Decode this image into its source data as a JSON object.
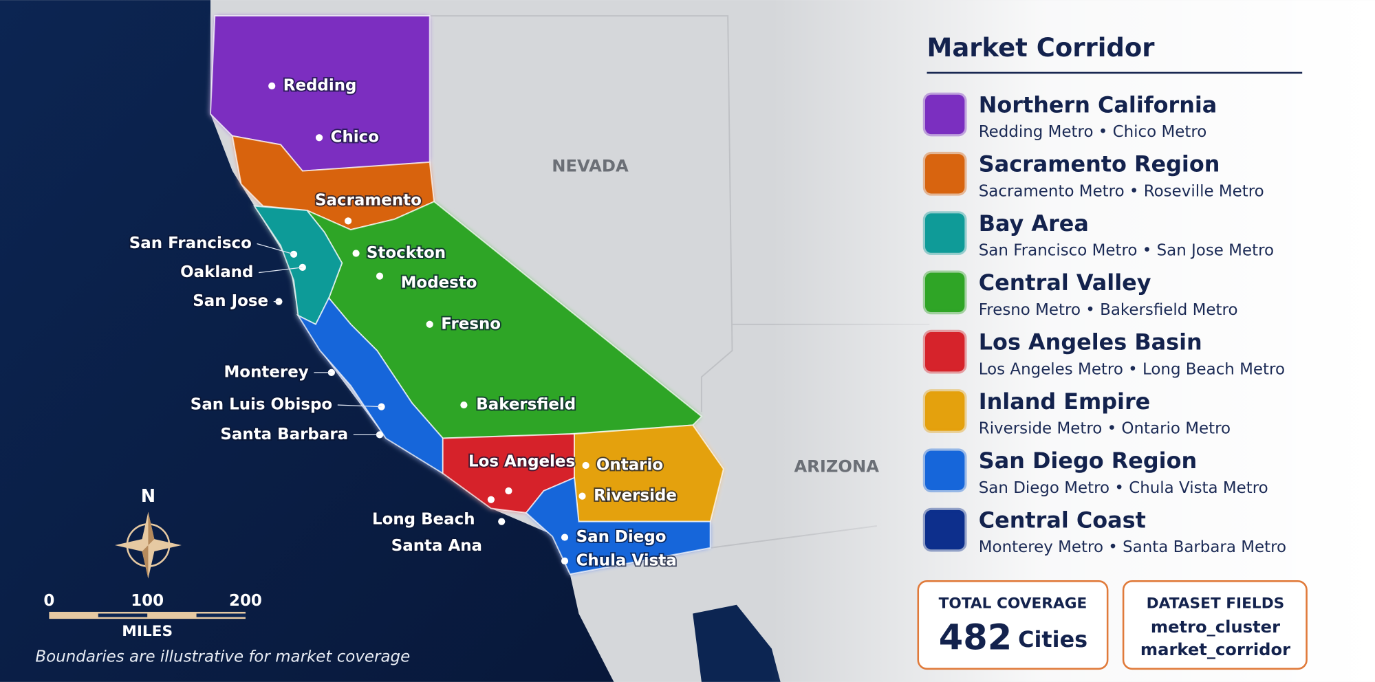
{
  "map": {
    "states": [
      "NEVADA",
      "ARIZONA"
    ],
    "cities": [
      "Redding",
      "Chico",
      "Sacramento",
      "San Francisco",
      "Oakland",
      "San Jose",
      "Stockton",
      "Modesto",
      "Fresno",
      "Monterey",
      "San Luis Obispo",
      "Santa Barbara",
      "Bakersfield",
      "Los Angeles",
      "Ontario",
      "Riverside",
      "Long Beach",
      "Santa Ana",
      "San Diego",
      "Chula Vista"
    ],
    "compass": "N",
    "scale": {
      "ticks": [
        0,
        100,
        200
      ],
      "unit": "MILES"
    },
    "note": "Boundaries are illustrative for market coverage"
  },
  "legend": {
    "title": "Market Corridor",
    "items": [
      {
        "name": "Northern California",
        "sub": "Redding Metro • Chico Metro",
        "color": "#7b2fc0"
      },
      {
        "name": "Sacramento Region",
        "sub": "Sacramento Metro • Roseville Metro",
        "color": "#d8640f"
      },
      {
        "name": "Bay Area",
        "sub": "San Francisco Metro • San Jose Metro",
        "color": "#0f9b98"
      },
      {
        "name": "Central Valley",
        "sub": "Fresno Metro • Bakersfield Metro",
        "color": "#2fa526"
      },
      {
        "name": "Los Angeles Basin",
        "sub": "Los Angeles Metro • Long Beach Metro",
        "color": "#d6232b"
      },
      {
        "name": "Inland Empire",
        "sub": "Riverside Metro • Ontario Metro",
        "color": "#e4a10d"
      },
      {
        "name": "San Diego Region",
        "sub": "San Diego Metro • Chula Vista Metro",
        "color": "#1666da"
      },
      {
        "name": "Central Coast",
        "sub": "Monterey Metro • Santa Barbara Metro",
        "color": "#0d2f8c"
      }
    ]
  },
  "total_coverage": {
    "label": "TOTAL COVERAGE",
    "value": 482,
    "unit": "Cities"
  },
  "dataset_fields": {
    "label": "DATASET FIELDS",
    "fields": [
      "metro_cluster",
      "market_corridor"
    ]
  }
}
